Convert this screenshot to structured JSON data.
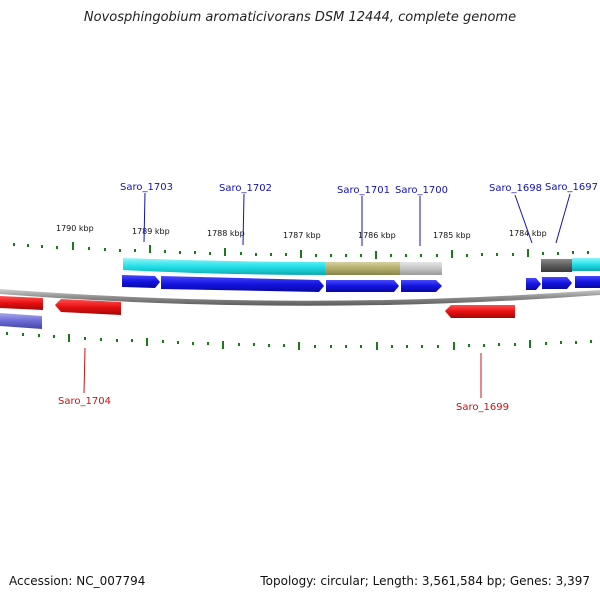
{
  "title": "Novosphingobium aromaticivorans DSM 12444, complete genome",
  "footer": {
    "accession": "Accession: NC_007794",
    "summary": "Topology: circular; Length: 3,561,584 bp; Genes: 3,397"
  },
  "scale_labels": [
    "1790 kbp",
    "1789 kbp",
    "1788 kbp",
    "1787 kbp",
    "1786 kbp",
    "1785 kbp",
    "1784 kbp"
  ],
  "genes_top": [
    "Saro_1703",
    "Saro_1702",
    "Saro_1701",
    "Saro_1700",
    "Saro_1698",
    "Saro_1697"
  ],
  "genes_bottom": [
    "Saro_1704",
    "Saro_1699"
  ],
  "colors": {
    "forward_gene": "#1a1ae6",
    "reverse_gene": "#e60f0f",
    "cog_cyan": "#22e0e8",
    "cog_olive": "#b3ac6a",
    "cog_gray": "#c4c4c4",
    "cog_dark": "#5c5c5c",
    "tick": "#1b7a1b",
    "backbone": "#8c8c8c"
  }
}
